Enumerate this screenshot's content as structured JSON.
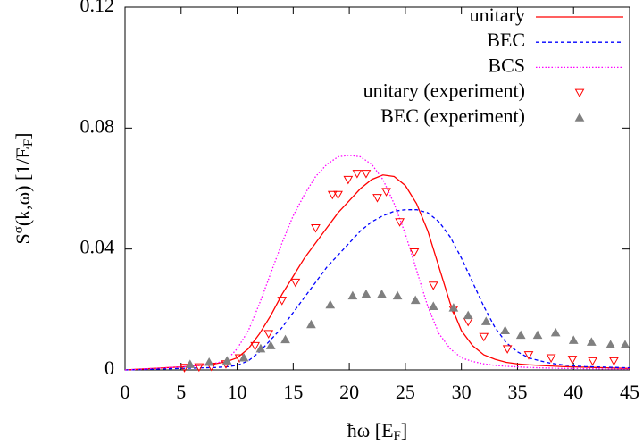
{
  "chart_data": {
    "type": "line",
    "xlabel": [
      "ħω [E",
      "F",
      "]"
    ],
    "ylabel": [
      "S",
      "σ",
      "(k,ω) [1/E",
      "F",
      "]"
    ],
    "xlim": [
      0,
      45
    ],
    "ylim": [
      0,
      0.12
    ],
    "xticks": [
      0,
      5,
      10,
      15,
      20,
      25,
      30,
      35,
      40,
      45
    ],
    "yticks": [
      0,
      0.04,
      0.08,
      0.12
    ],
    "legend": "top-right",
    "x": [
      0,
      1,
      2,
      3,
      4,
      5,
      6,
      7,
      8,
      9,
      10,
      11,
      12,
      13,
      14,
      15,
      16,
      17,
      18,
      19,
      20,
      21,
      22,
      23,
      24,
      25,
      26,
      27,
      28,
      29,
      30,
      31,
      32,
      33,
      34,
      35,
      36,
      37,
      38,
      39,
      40,
      41,
      42,
      43,
      44,
      45
    ],
    "series": [
      {
        "name": "unitary",
        "color": "#ff0000",
        "style": "solid",
        "values": [
          0,
          0.0002,
          0.0004,
          0.0006,
          0.0008,
          0.001,
          0.0013,
          0.0016,
          0.002,
          0.0027,
          0.004,
          0.007,
          0.012,
          0.018,
          0.025,
          0.031,
          0.037,
          0.042,
          0.047,
          0.052,
          0.056,
          0.06,
          0.063,
          0.0645,
          0.064,
          0.061,
          0.055,
          0.046,
          0.034,
          0.022,
          0.013,
          0.008,
          0.005,
          0.0035,
          0.0025,
          0.002,
          0.0017,
          0.0015,
          0.0013,
          0.0011,
          0.001,
          0.0009,
          0.0008,
          0.0007,
          0.0006,
          0.0005
        ]
      },
      {
        "name": "BEC",
        "color": "#0000ff",
        "style": "dashed",
        "values": [
          0,
          0.0001,
          0.0002,
          0.0003,
          0.0004,
          0.0005,
          0.0006,
          0.0007,
          0.0008,
          0.001,
          0.0015,
          0.003,
          0.006,
          0.01,
          0.014,
          0.019,
          0.024,
          0.029,
          0.034,
          0.038,
          0.042,
          0.046,
          0.049,
          0.051,
          0.0525,
          0.053,
          0.053,
          0.052,
          0.049,
          0.044,
          0.037,
          0.029,
          0.021,
          0.014,
          0.009,
          0.006,
          0.004,
          0.003,
          0.0022,
          0.0017,
          0.0013,
          0.0011,
          0.001,
          0.0009,
          0.0008,
          0.0007
        ]
      },
      {
        "name": "BCS",
        "color": "#ff00ff",
        "style": "dotted",
        "values": [
          0,
          0.0002,
          0.0004,
          0.0006,
          0.0008,
          0.001,
          0.0013,
          0.0017,
          0.0022,
          0.003,
          0.007,
          0.013,
          0.022,
          0.032,
          0.042,
          0.051,
          0.058,
          0.064,
          0.068,
          0.0705,
          0.071,
          0.0705,
          0.068,
          0.063,
          0.055,
          0.045,
          0.033,
          0.021,
          0.012,
          0.007,
          0.004,
          0.0028,
          0.002,
          0.0015,
          0.0012,
          0.001,
          0.0008,
          0.0007,
          0.0006,
          0.0005,
          0.0005,
          0.0004,
          0.0004,
          0.0003,
          0.0003,
          0.0003
        ]
      },
      {
        "name": "unitary (experiment)",
        "color": "#ff0000",
        "style": "triangle-down",
        "x": [
          5.3,
          6.6,
          7.7,
          9.0,
          10.2,
          11.6,
          12.8,
          14.0,
          15.2,
          17.0,
          18.5,
          19.0,
          19.9,
          20.7,
          21.5,
          22.5,
          23.3,
          24.5,
          25.8,
          27.5,
          29.3,
          30.6,
          32.0,
          34.1,
          36.0,
          38.0,
          39.9,
          41.7,
          43.6
        ],
        "values": [
          0.0008,
          0.001,
          0.0012,
          0.002,
          0.004,
          0.008,
          0.012,
          0.023,
          0.029,
          0.047,
          0.058,
          0.058,
          0.063,
          0.065,
          0.065,
          0.057,
          0.059,
          0.049,
          0.039,
          0.028,
          0.02,
          0.016,
          0.011,
          0.007,
          0.005,
          0.004,
          0.0035,
          0.003,
          0.003
        ]
      },
      {
        "name": "BEC (experiment)",
        "color": "#808080",
        "style": "triangle-up",
        "x": [
          5.8,
          7.5,
          9.1,
          10.6,
          12.1,
          13.0,
          14.3,
          16.6,
          18.3,
          20.3,
          21.5,
          22.9,
          24.3,
          25.9,
          27.5,
          29.3,
          30.6,
          32.2,
          33.9,
          35.3,
          36.8,
          38.4,
          40.0,
          41.6,
          43.3,
          44.6
        ],
        "values": [
          0.0018,
          0.0025,
          0.003,
          0.004,
          0.007,
          0.008,
          0.01,
          0.015,
          0.0215,
          0.0245,
          0.025,
          0.025,
          0.0245,
          0.023,
          0.021,
          0.0205,
          0.018,
          0.016,
          0.013,
          0.0115,
          0.0115,
          0.0123,
          0.0098,
          0.0092,
          0.0083,
          0.0083
        ]
      }
    ]
  }
}
